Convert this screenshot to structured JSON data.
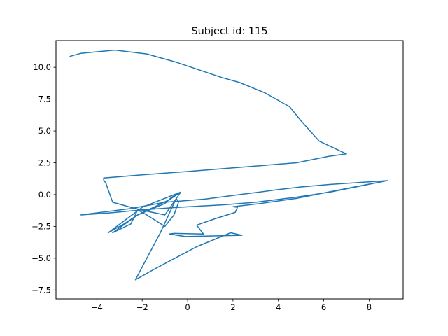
{
  "chart_data": {
    "type": "line",
    "title": "Subject id: 115",
    "xlabel": "",
    "ylabel": "",
    "xlim": [
      -5.8,
      9.5
    ],
    "ylim": [
      -8.2,
      12.1
    ],
    "xticks": [
      -4,
      -2,
      0,
      2,
      4,
      6,
      8
    ],
    "xtick_labels": [
      "−4",
      "−2",
      "0",
      "2",
      "4",
      "6",
      "8"
    ],
    "yticks": [
      -7.5,
      -5.0,
      -2.5,
      0.0,
      2.5,
      5.0,
      7.5,
      10.0
    ],
    "ytick_labels": [
      "−7.5",
      "−5.0",
      "−2.5",
      "0.0",
      "2.5",
      "5.0",
      "7.5",
      "10.0"
    ],
    "grid": false,
    "legend": "none",
    "series": [
      {
        "color": "#1f77b4",
        "x": [
          -5.2,
          -4.7,
          -3.2,
          -1.8,
          -0.5,
          0.5,
          1.5,
          2.3,
          3.4,
          4.5,
          5.0,
          5.8,
          7.0,
          6.2,
          4.8,
          2.0,
          -0.1,
          -2.0,
          -3.7,
          -3.7,
          -3.6,
          -3.3,
          -2.5,
          -1.8,
          -1.0,
          -0.3,
          -2.0,
          -3.5,
          -2.8,
          -2.2,
          -1.0,
          -0.7,
          -0.3,
          -0.8,
          -2.2,
          -3.3,
          -2.5,
          -2.2,
          -1.8,
          -1.0,
          -0.6,
          -0.4,
          -0.5,
          -1.2,
          -2.3,
          -1.4,
          0.4,
          1.9,
          2.4,
          -0.1,
          -0.8,
          -0.6,
          0.7,
          0.4,
          1.2,
          2.1,
          2.2,
          2.0,
          3.2,
          4.8,
          6.2,
          8.8,
          6.3,
          4.8,
          3.0,
          1.6,
          -0.4,
          -2.0,
          -3.5,
          -4.7,
          -4.5,
          -2.5,
          -1.0,
          0.8,
          2.3,
          3.2,
          4.0,
          5.0,
          6.3,
          8.8
        ],
        "y": [
          10.85,
          11.1,
          11.35,
          11.05,
          10.4,
          9.8,
          9.2,
          8.8,
          8.0,
          6.9,
          5.8,
          4.2,
          3.2,
          3.0,
          2.5,
          2.1,
          1.8,
          1.55,
          1.3,
          1.15,
          0.9,
          -0.6,
          -1.0,
          -1.3,
          -1.6,
          0.2,
          -1.0,
          -3.0,
          -2.3,
          -1.6,
          -0.7,
          -0.2,
          0.2,
          -0.4,
          -1.6,
          -3.0,
          -2.3,
          -1.2,
          -1.6,
          -2.5,
          -1.6,
          -0.6,
          -0.3,
          -3.0,
          -6.7,
          -5.8,
          -4.1,
          -3.0,
          -3.2,
          -3.3,
          -3.1,
          -3.05,
          -3.1,
          -2.4,
          -1.9,
          -1.4,
          -1.0,
          -0.95,
          -0.7,
          -0.3,
          0.2,
          1.1,
          0.2,
          -0.2,
          -0.6,
          -0.8,
          -1.0,
          -1.2,
          -1.45,
          -1.6,
          -1.55,
          -1.1,
          -0.6,
          -0.35,
          0.0,
          0.2,
          0.4,
          0.6,
          0.8,
          1.1
        ]
      }
    ]
  }
}
